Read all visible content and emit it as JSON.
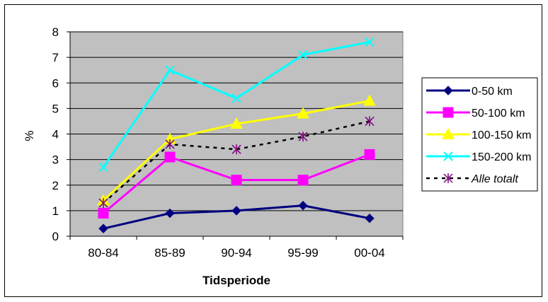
{
  "chart_data": {
    "type": "line",
    "title": "",
    "xlabel": "Tidsperiode",
    "ylabel": "%",
    "categories": [
      "80-84",
      "85-89",
      "90-94",
      "95-99",
      "00-04"
    ],
    "ylim": [
      0,
      8
    ],
    "yticks": [
      0,
      1,
      2,
      3,
      4,
      5,
      6,
      7,
      8
    ],
    "grid": "horizontal",
    "plot_background": "#c0c0c0",
    "legend_position": "right",
    "series": [
      {
        "name": "0-50 km",
        "values": [
          0.3,
          0.9,
          1.0,
          1.2,
          0.7
        ],
        "color": "#000080",
        "marker": "diamond",
        "dashed": false
      },
      {
        "name": "50-100 km",
        "values": [
          0.9,
          3.1,
          2.2,
          2.2,
          3.2
        ],
        "color": "#ff00ff",
        "marker": "square",
        "dashed": false
      },
      {
        "name": "100-150 km",
        "values": [
          1.4,
          3.8,
          4.4,
          4.8,
          5.3
        ],
        "color": "#ffff00",
        "marker": "triangle",
        "dashed": false
      },
      {
        "name": "150-200 km",
        "values": [
          2.7,
          6.5,
          5.4,
          7.1,
          7.6
        ],
        "color": "#00ffff",
        "marker": "x",
        "dashed": false
      },
      {
        "name": "Alle totalt",
        "values": [
          1.3,
          3.6,
          3.4,
          3.9,
          4.5
        ],
        "color": "#000000",
        "marker": "asterisk",
        "marker_color": "#800080",
        "dashed": true,
        "italic_label": true
      }
    ]
  }
}
